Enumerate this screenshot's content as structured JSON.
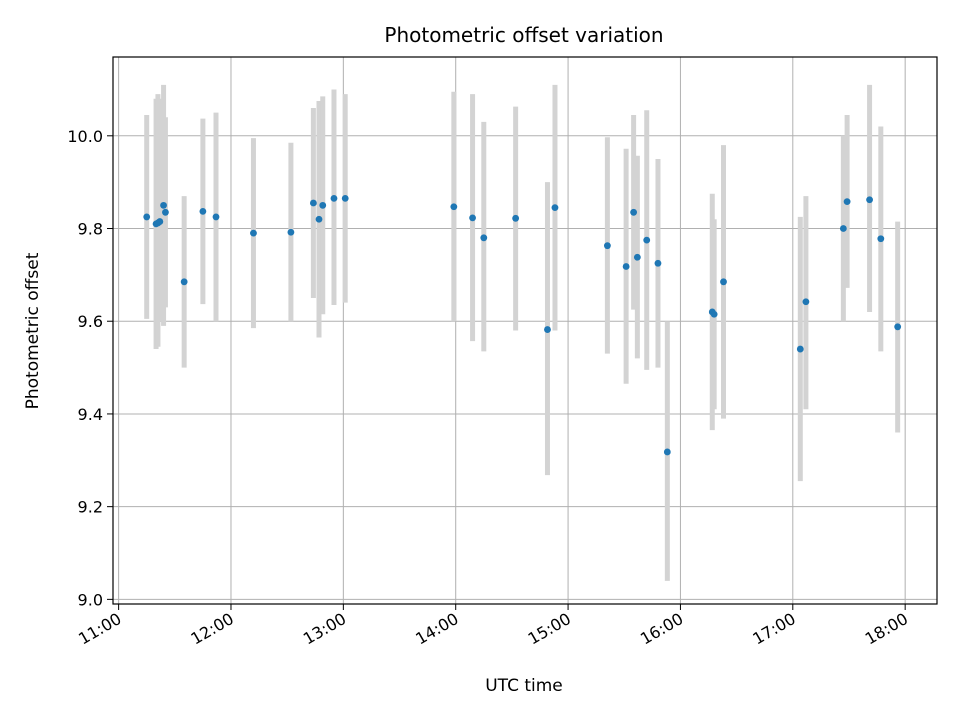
{
  "chart_data": {
    "type": "scatter",
    "title": "Photometric offset variation",
    "xlabel": "UTC time",
    "ylabel": "Photometric offset",
    "x_tick_labels": [
      "11:00",
      "12:00",
      "13:00",
      "14:00",
      "15:00",
      "16:00",
      "17:00",
      "18:00"
    ],
    "y_tick_labels": [
      "9.0",
      "9.2",
      "9.4",
      "9.6",
      "9.8",
      "10.0"
    ],
    "xlim": [
      "10:57",
      "18:17"
    ],
    "ylim": [
      8.99,
      10.17
    ],
    "grid": true,
    "colors": {
      "point": "#1f77b4",
      "errorbar": "#d3d3d3",
      "grid": "#b0b0b0"
    },
    "points": [
      {
        "x": "11:15",
        "y": 9.825,
        "low": 9.605,
        "high": 10.045
      },
      {
        "x": "11:20",
        "y": 9.81,
        "low": 9.54,
        "high": 10.08
      },
      {
        "x": "11:21",
        "y": 9.812,
        "low": 9.545,
        "high": 10.09
      },
      {
        "x": "11:22",
        "y": 9.815,
        "low": 9.6,
        "high": 10.08
      },
      {
        "x": "11:24",
        "y": 9.85,
        "low": 9.59,
        "high": 10.11
      },
      {
        "x": "11:25",
        "y": 9.835,
        "low": 9.63,
        "high": 10.04
      },
      {
        "x": "11:35",
        "y": 9.685,
        "low": 9.5,
        "high": 9.87
      },
      {
        "x": "11:45",
        "y": 9.837,
        "low": 9.637,
        "high": 10.037
      },
      {
        "x": "11:52",
        "y": 9.825,
        "low": 9.6,
        "high": 10.05
      },
      {
        "x": "12:12",
        "y": 9.79,
        "low": 9.585,
        "high": 9.995
      },
      {
        "x": "12:32",
        "y": 9.792,
        "low": 9.6,
        "high": 9.985
      },
      {
        "x": "12:44",
        "y": 9.855,
        "low": 9.65,
        "high": 10.06
      },
      {
        "x": "12:47",
        "y": 9.82,
        "low": 9.565,
        "high": 10.075
      },
      {
        "x": "12:49",
        "y": 9.85,
        "low": 9.615,
        "high": 10.085
      },
      {
        "x": "12:55",
        "y": 9.865,
        "low": 9.635,
        "high": 10.1
      },
      {
        "x": "13:01",
        "y": 9.865,
        "low": 9.64,
        "high": 10.09
      },
      {
        "x": "13:59",
        "y": 9.847,
        "low": 9.6,
        "high": 10.095
      },
      {
        "x": "14:09",
        "y": 9.823,
        "low": 9.557,
        "high": 10.09
      },
      {
        "x": "14:15",
        "y": 9.78,
        "low": 9.535,
        "high": 10.03
      },
      {
        "x": "14:32",
        "y": 9.822,
        "low": 9.58,
        "high": 10.063
      },
      {
        "x": "14:49",
        "y": 9.582,
        "low": 9.268,
        "high": 9.9
      },
      {
        "x": "14:53",
        "y": 9.845,
        "low": 9.58,
        "high": 10.11
      },
      {
        "x": "15:21",
        "y": 9.763,
        "low": 9.53,
        "high": 9.997
      },
      {
        "x": "15:31",
        "y": 9.718,
        "low": 9.465,
        "high": 9.972
      },
      {
        "x": "15:35",
        "y": 9.835,
        "low": 9.625,
        "high": 10.045
      },
      {
        "x": "15:37",
        "y": 9.738,
        "low": 9.52,
        "high": 9.957
      },
      {
        "x": "15:42",
        "y": 9.775,
        "low": 9.495,
        "high": 10.055
      },
      {
        "x": "15:48",
        "y": 9.725,
        "low": 9.5,
        "high": 9.95
      },
      {
        "x": "15:53",
        "y": 9.318,
        "low": 9.04,
        "high": 9.6
      },
      {
        "x": "16:17",
        "y": 9.62,
        "low": 9.365,
        "high": 9.875
      },
      {
        "x": "16:18",
        "y": 9.615,
        "low": 9.41,
        "high": 9.82
      },
      {
        "x": "16:23",
        "y": 9.685,
        "low": 9.39,
        "high": 9.98
      },
      {
        "x": "17:04",
        "y": 9.54,
        "low": 9.255,
        "high": 9.825
      },
      {
        "x": "17:07",
        "y": 9.642,
        "low": 9.41,
        "high": 9.87
      },
      {
        "x": "17:27",
        "y": 9.8,
        "low": 9.6,
        "high": 10.0
      },
      {
        "x": "17:29",
        "y": 9.858,
        "low": 9.672,
        "high": 10.045
      },
      {
        "x": "17:41",
        "y": 9.862,
        "low": 9.62,
        "high": 10.11
      },
      {
        "x": "17:47",
        "y": 9.778,
        "low": 9.535,
        "high": 10.02
      },
      {
        "x": "17:56",
        "y": 9.588,
        "low": 9.36,
        "high": 9.815
      }
    ]
  }
}
